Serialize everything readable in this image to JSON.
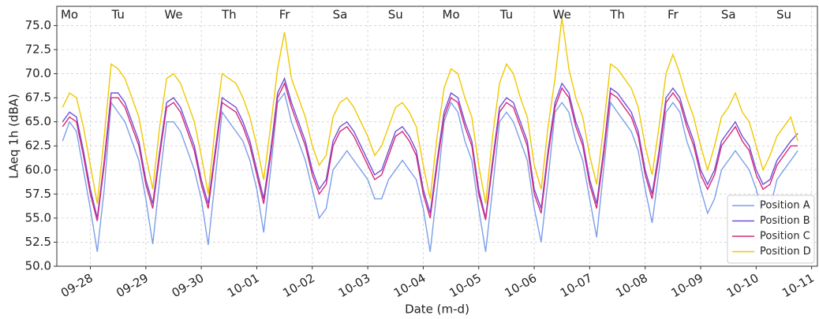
{
  "chart_data": {
    "type": "line",
    "x_label": "Date (m-d)",
    "y_label": "LAeq 1h (dBA)",
    "day_labels": [
      "Mo",
      "Tu",
      "We",
      "Th",
      "Fr",
      "Sa",
      "Su",
      "Mo",
      "Tu",
      "We",
      "Th",
      "Fr",
      "Sa",
      "Su"
    ],
    "x": [
      -12,
      -9,
      -6,
      -3,
      0,
      3,
      6,
      9,
      12,
      15,
      18,
      21,
      24,
      27,
      30,
      33,
      36,
      39,
      42,
      45,
      48,
      51,
      54,
      57,
      60,
      63,
      66,
      69,
      72,
      75,
      78,
      81,
      84,
      87,
      90,
      93,
      96,
      99,
      102,
      105,
      108,
      111,
      114,
      117,
      120,
      123,
      126,
      129,
      132,
      135,
      138,
      141,
      144,
      147,
      150,
      153,
      156,
      159,
      162,
      165,
      168,
      171,
      174,
      177,
      180,
      183,
      186,
      189,
      192,
      195,
      198,
      201,
      204,
      207,
      210,
      213,
      216,
      219,
      222,
      225,
      228,
      231,
      234,
      237,
      240,
      243,
      246,
      249,
      252,
      255,
      258,
      261,
      264,
      267,
      270,
      273,
      276,
      279,
      282,
      285,
      288,
      291,
      294,
      297,
      300,
      303,
      306
    ],
    "xlim": [
      -14.5,
      314.5
    ],
    "xticks": [
      {
        "value": 0,
        "label": "09-28"
      },
      {
        "value": 24,
        "label": "09-29"
      },
      {
        "value": 48,
        "label": "09-30"
      },
      {
        "value": 72,
        "label": "10-01"
      },
      {
        "value": 96,
        "label": "10-02"
      },
      {
        "value": 120,
        "label": "10-03"
      },
      {
        "value": 144,
        "label": "10-04"
      },
      {
        "value": 168,
        "label": "10-05"
      },
      {
        "value": 192,
        "label": "10-06"
      },
      {
        "value": 216,
        "label": "10-07"
      },
      {
        "value": 240,
        "label": "10-08"
      },
      {
        "value": 264,
        "label": "10-09"
      },
      {
        "value": 288,
        "label": "10-10"
      },
      {
        "value": 312,
        "label": "10-11"
      }
    ],
    "ylim": [
      50,
      77
    ],
    "yticks": [
      {
        "value": 50,
        "label": "50.0"
      },
      {
        "value": 52.5,
        "label": "52.5"
      },
      {
        "value": 55,
        "label": "55.0"
      },
      {
        "value": 57.5,
        "label": "57.5"
      },
      {
        "value": 60,
        "label": "60.0"
      },
      {
        "value": 62.5,
        "label": "62.5"
      },
      {
        "value": 65,
        "label": "65.0"
      },
      {
        "value": 67.5,
        "label": "67.5"
      },
      {
        "value": 70,
        "label": "70.0"
      },
      {
        "value": 72.5,
        "label": "72.5"
      },
      {
        "value": 75,
        "label": "75.0"
      }
    ],
    "grid": true,
    "legend": "lower right",
    "series": [
      {
        "name": "Position A",
        "color": "#7b9fe8",
        "values": [
          63,
          65,
          64,
          60,
          56,
          51.5,
          58,
          67,
          66,
          65,
          63,
          61,
          57,
          52.3,
          59,
          65,
          65,
          64,
          62,
          60,
          57,
          52.2,
          59,
          66,
          65,
          64,
          63,
          61,
          58,
          53.5,
          60,
          67,
          68,
          65,
          63,
          61,
          58,
          55,
          56,
          60,
          61,
          62,
          61,
          60,
          59,
          57,
          57,
          59,
          60,
          61,
          60,
          59,
          56,
          51.5,
          58,
          65,
          67,
          66,
          63,
          61,
          56,
          51.5,
          58,
          65,
          66,
          65,
          63,
          61,
          56,
          52.5,
          59,
          66,
          67,
          66,
          63,
          61,
          57,
          53,
          60,
          67,
          66,
          65,
          64,
          62,
          58,
          54.5,
          60,
          66,
          67,
          66,
          63,
          61,
          58,
          55.5,
          57,
          60,
          61,
          62,
          61,
          60,
          58,
          55,
          56,
          59,
          60,
          61,
          62
        ]
      },
      {
        "name": "Position B",
        "color": "#7050d8",
        "values": [
          65,
          66,
          65.5,
          62,
          58,
          55,
          61,
          68,
          68,
          67,
          65,
          63,
          59,
          56.5,
          62,
          67,
          67.5,
          66.5,
          64.5,
          62.5,
          59,
          56.5,
          62,
          67.5,
          67,
          66.5,
          65,
          63,
          60,
          57,
          62,
          68,
          69.5,
          67,
          65,
          63,
          60,
          58,
          59,
          63,
          64.5,
          65,
          64,
          62.5,
          61,
          59.5,
          60,
          62,
          64,
          64.5,
          63.5,
          62,
          58,
          55.5,
          61,
          66,
          68,
          67.5,
          65,
          63,
          58,
          55,
          61,
          66.5,
          67.5,
          67,
          65,
          63,
          58,
          56,
          62,
          67,
          69,
          68,
          65,
          63,
          59,
          56.5,
          62,
          68.5,
          68,
          67,
          66,
          64,
          60,
          57.5,
          62,
          67.5,
          68.5,
          67.5,
          65,
          63,
          60,
          58.5,
          60,
          63,
          64,
          65,
          63.5,
          62.5,
          60,
          58.5,
          59,
          61,
          62,
          63,
          63.8
        ]
      },
      {
        "name": "Position C",
        "color": "#d6287a",
        "values": [
          64.5,
          65.5,
          65,
          61.5,
          57.5,
          54.7,
          60.5,
          67.5,
          67.5,
          66.5,
          64.5,
          62.5,
          58.5,
          56,
          61.5,
          66.5,
          67,
          66,
          64,
          62,
          58.5,
          56,
          61.5,
          67,
          66.5,
          66,
          64.5,
          62.5,
          59.5,
          56.5,
          61.5,
          67.5,
          69,
          66.5,
          64.5,
          62.5,
          59.5,
          57.5,
          58.5,
          62.5,
          64,
          64.5,
          63.5,
          62,
          60.5,
          59,
          59.5,
          61.5,
          63.5,
          64,
          63,
          61.5,
          57.5,
          55,
          60.5,
          65.5,
          67.5,
          67,
          64.5,
          62.5,
          57.5,
          54.8,
          60.5,
          66,
          67,
          66.5,
          64.5,
          62.5,
          57.5,
          55.5,
          61.5,
          66.5,
          68.5,
          67.5,
          64.5,
          62.5,
          58.5,
          56,
          61.5,
          68,
          67.5,
          66.5,
          65.5,
          63.5,
          59.5,
          57,
          61.5,
          67,
          68,
          67,
          64.5,
          62.5,
          59.5,
          58,
          59.5,
          62.5,
          63.5,
          64.5,
          63,
          62,
          59.5,
          58,
          58.5,
          60.5,
          61.5,
          62.5,
          62.5
        ]
      },
      {
        "name": "Position D",
        "color": "#f0c800",
        "values": [
          66.5,
          68,
          67.5,
          64.5,
          60.5,
          56.5,
          63.5,
          71,
          70.5,
          69.5,
          67.5,
          65.5,
          61.5,
          58,
          64.5,
          69.5,
          70,
          69,
          67,
          65,
          61.5,
          57.5,
          64.5,
          70,
          69.5,
          69,
          67.5,
          65.5,
          62.5,
          59,
          64.5,
          70.5,
          74.3,
          69.5,
          67.5,
          65.5,
          62.5,
          60.5,
          61.5,
          65.5,
          67,
          67.5,
          66.5,
          65,
          63.5,
          61.5,
          62.5,
          64.5,
          66.5,
          67,
          66,
          64.5,
          60.5,
          57,
          63.5,
          68.5,
          70.5,
          70,
          67.5,
          65.5,
          60.5,
          56.5,
          63.5,
          69,
          71,
          70,
          67.5,
          65.5,
          60.5,
          58,
          64.5,
          69.5,
          75.8,
          70.5,
          67.5,
          65.5,
          61.5,
          58.5,
          64.5,
          71,
          70.5,
          69.5,
          68.5,
          66.5,
          62.5,
          59.5,
          64.5,
          70,
          72,
          70,
          67.5,
          65.5,
          62.5,
          60,
          62.5,
          65.5,
          66.5,
          68,
          66,
          65,
          62.5,
          60,
          61.5,
          63.5,
          64.5,
          65.5,
          63
        ]
      }
    ]
  }
}
